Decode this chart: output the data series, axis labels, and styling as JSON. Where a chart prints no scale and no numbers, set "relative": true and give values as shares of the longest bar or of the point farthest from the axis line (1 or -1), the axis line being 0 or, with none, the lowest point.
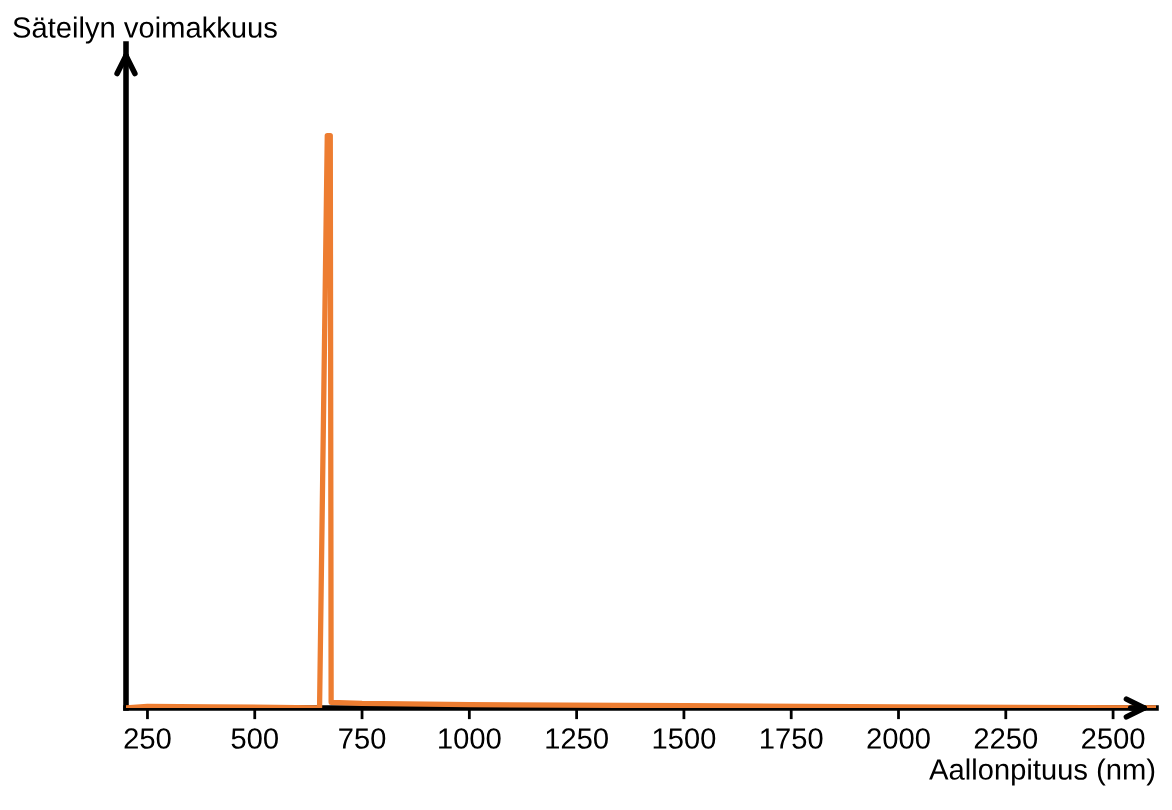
{
  "chart_data": {
    "type": "line",
    "xlabel": "Aallonpituus (nm)",
    "ylabel": "Säteilyn voimakkuus",
    "relative": true,
    "xlim": [
      200,
      2600
    ],
    "xticks": [
      250,
      500,
      750,
      1000,
      1250,
      1500,
      1750,
      2000,
      2250,
      2500
    ],
    "x": [
      200,
      250,
      400,
      550,
      645,
      651,
      669,
      676,
      678,
      750,
      1000,
      1500,
      2000,
      2600
    ],
    "series": [
      {
        "color": "#ed7d31",
        "values": [
          0,
          0.003,
          0.002,
          0.001,
          0,
          0,
          1,
          1,
          0.01,
          0.008,
          0.006,
          0.004,
          0.002,
          0
        ]
      }
    ]
  }
}
